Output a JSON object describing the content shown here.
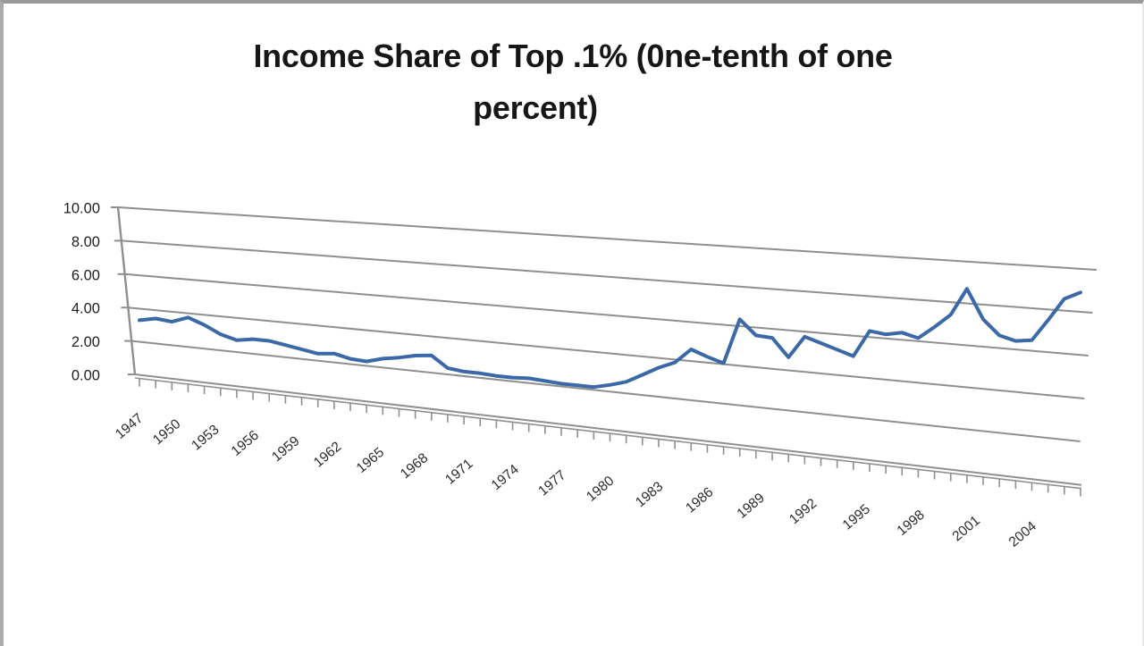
{
  "chart_data": {
    "type": "line",
    "title": "Income Share of Top .1% (0ne-tenth of one percent)",
    "title_line1": "Income Share of Top .1% (0ne-tenth of one",
    "title_line2": "percent)",
    "xlabel": "",
    "ylabel": "",
    "ylim": [
      0,
      10
    ],
    "ytick_step": 2,
    "yticks": [
      {
        "v": 0,
        "label": "0.00"
      },
      {
        "v": 2,
        "label": "2.00"
      },
      {
        "v": 4,
        "label": "4.00"
      },
      {
        "v": 6,
        "label": "6.00"
      },
      {
        "v": 8,
        "label": "8.00"
      },
      {
        "v": 10,
        "label": "10.00"
      }
    ],
    "xtick_labels": [
      "1947",
      "1950",
      "1953",
      "1956",
      "1959",
      "1962",
      "1965",
      "1968",
      "1971",
      "1974",
      "1977",
      "1980",
      "1983",
      "1986",
      "1989",
      "1992",
      "1995",
      "1998",
      "2001",
      "2004"
    ],
    "grid": true,
    "legend": null,
    "perspective_3d": true,
    "series": [
      {
        "name": "Income share of top 0.1%",
        "years": [
          1947,
          1948,
          1949,
          1950,
          1951,
          1952,
          1953,
          1954,
          1955,
          1956,
          1957,
          1958,
          1959,
          1960,
          1961,
          1962,
          1963,
          1964,
          1965,
          1966,
          1967,
          1968,
          1969,
          1970,
          1971,
          1972,
          1973,
          1974,
          1975,
          1976,
          1977,
          1978,
          1979,
          1980,
          1981,
          1982,
          1983,
          1984,
          1985,
          1986,
          1987,
          1988,
          1989,
          1990,
          1991,
          1992,
          1993,
          1994,
          1995,
          1996,
          1997,
          1998,
          1999,
          2000,
          2001,
          2002,
          2003,
          2004,
          2005
        ],
        "values": [
          3.3,
          3.5,
          3.4,
          3.75,
          3.4,
          2.95,
          2.7,
          2.85,
          2.85,
          2.7,
          2.55,
          2.4,
          2.5,
          2.3,
          2.25,
          2.5,
          2.65,
          2.85,
          2.95,
          2.35,
          2.25,
          2.25,
          2.2,
          2.2,
          2.25,
          2.2,
          2.15,
          2.15,
          2.15,
          2.35,
          2.6,
          3.05,
          3.5,
          3.85,
          4.6,
          4.3,
          4.05,
          6.35,
          5.6,
          5.55,
          4.65,
          5.75,
          5.5,
          5.25,
          5.0,
          6.3,
          6.2,
          6.35,
          6.15,
          6.75,
          7.4,
          8.7,
          7.3,
          6.6,
          6.4,
          6.5,
          7.5,
          8.55,
          8.9
        ]
      }
    ],
    "style": {
      "line_color": "#3b69a8",
      "line_width": 4,
      "grid_color": "#8f8f8f",
      "axis_color": "#8f8f8f",
      "tick_color": "#8f8f8f",
      "ytick_text_color": "#1f1f1f",
      "xtick_text_color": "#2e2e2e",
      "title_color": "#161616",
      "background": "#ffffff"
    }
  }
}
